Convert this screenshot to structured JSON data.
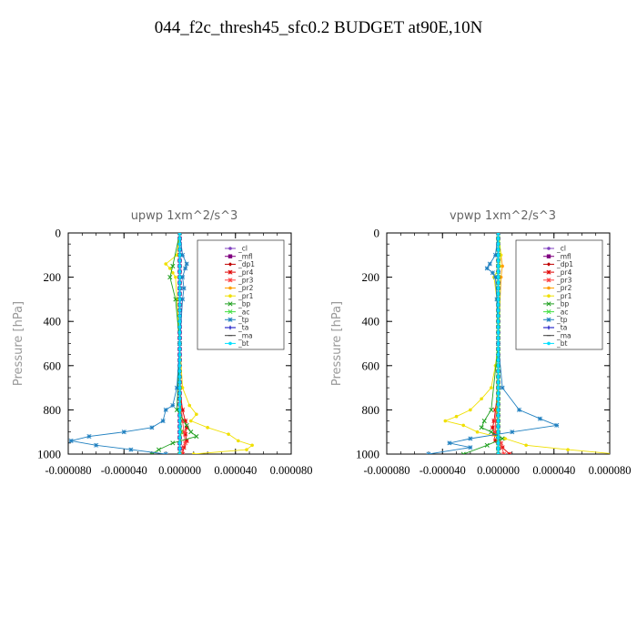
{
  "title": "044_f2c_thresh45_sfc0.2  BUDGET at90E,10N",
  "chart_data": [
    {
      "type": "line",
      "title": "upwp   1xm^2/s^3",
      "ylabel": "Pressure [hPa]",
      "xlim": [
        -8e-05,
        8e-05
      ],
      "ylim": [
        0,
        1000
      ],
      "y_inverted": true,
      "yticks": [
        "0",
        "200",
        "400",
        "600",
        "800",
        "1000"
      ],
      "xticks": [
        "-0.000080",
        "-0.000040",
        "0.000000",
        "0.000040",
        "0.000080"
      ],
      "legend": "top-right",
      "series": [
        {
          "name": "_cl",
          "color": "#8040c0",
          "y": [
            0,
            1000
          ],
          "x": [
            0,
            0
          ]
        },
        {
          "name": "_mfl",
          "color": "#800080",
          "y": [
            0,
            1000
          ],
          "x": [
            0,
            0
          ]
        },
        {
          "name": "_dp1",
          "color": "#c00000",
          "y": [
            0,
            1000
          ],
          "x": [
            0,
            0
          ]
        },
        {
          "name": "_pr4",
          "color": "#e00000",
          "y": [
            700,
            800,
            850,
            880,
            910,
            940,
            970,
            1000
          ],
          "x": [
            0,
            2e-06,
            4e-06,
            5e-06,
            4e-06,
            5e-06,
            3e-06,
            2e-06
          ]
        },
        {
          "name": "_pr3",
          "color": "#ff4040",
          "y": [
            700,
            850,
            900,
            950,
            1000
          ],
          "x": [
            0,
            2e-06,
            3e-06,
            4e-06,
            1e-06
          ]
        },
        {
          "name": "_pr2",
          "color": "#ffa000",
          "y": [
            0,
            500,
            800,
            900,
            1000
          ],
          "x": [
            0,
            0,
            0,
            1e-06,
            0
          ]
        },
        {
          "name": "_pr1",
          "color": "#f0e000",
          "y": [
            0,
            100,
            140,
            160,
            180,
            200,
            300,
            500,
            700,
            780,
            820,
            850,
            880,
            910,
            940,
            960,
            980,
            1000
          ],
          "x": [
            0,
            -2e-06,
            -1e-05,
            -7e-06,
            -5e-06,
            -3e-06,
            -2e-06,
            0,
            2e-06,
            7e-06,
            1.2e-05,
            8e-06,
            2e-05,
            3.5e-05,
            4.2e-05,
            5.2e-05,
            4.8e-05,
            1e-05
          ]
        },
        {
          "name": "_bp",
          "color": "#20a020",
          "y": [
            0,
            150,
            200,
            300,
            500,
            800,
            870,
            900,
            920,
            950,
            980,
            1000
          ],
          "x": [
            0,
            -5e-06,
            -7e-06,
            -3e-06,
            0,
            -2e-06,
            5e-06,
            8e-06,
            1.2e-05,
            -5e-06,
            -1.5e-05,
            -2e-05
          ]
        },
        {
          "name": "_ac",
          "color": "#40e040",
          "y": [
            0,
            500,
            900,
            1000
          ],
          "x": [
            0,
            0,
            1e-06,
            0
          ]
        },
        {
          "name": "_tp",
          "color": "#2080c0",
          "y": [
            0,
            100,
            140,
            160,
            200,
            250,
            300,
            500,
            700,
            780,
            800,
            850,
            880,
            900,
            920,
            940,
            960,
            980,
            1000
          ],
          "x": [
            0,
            2e-06,
            5e-06,
            4e-06,
            2e-06,
            3e-06,
            2e-06,
            0,
            -2e-06,
            -5e-06,
            -1e-05,
            -1.2e-05,
            -2e-05,
            -4e-05,
            -6.5e-05,
            -7.8e-05,
            -6e-05,
            -3.5e-05,
            -1e-05
          ]
        },
        {
          "name": "_ta",
          "color": "#0000c0",
          "y": [
            0,
            1000
          ],
          "x": [
            0,
            0
          ]
        },
        {
          "name": "_ma",
          "color": "#404040",
          "y": [
            0,
            1000
          ],
          "x": [
            0,
            0
          ]
        },
        {
          "name": "_bt",
          "color": "#00e0ff",
          "y": [
            0,
            1000
          ],
          "x": [
            0,
            0
          ]
        }
      ]
    },
    {
      "type": "line",
      "title": "vpwp   1xm^2/s^3",
      "ylabel": "Pressure [hPa]",
      "xlim": [
        -8e-05,
        8e-05
      ],
      "ylim": [
        0,
        1000
      ],
      "y_inverted": true,
      "yticks": [
        "0",
        "200",
        "400",
        "600",
        "800",
        "1000"
      ],
      "xticks": [
        "-0.000080",
        "-0.000040",
        "0.000000",
        "0.000040",
        "0.000080"
      ],
      "legend": "top-right",
      "series": [
        {
          "name": "_cl",
          "color": "#8040c0",
          "y": [
            0,
            1000
          ],
          "x": [
            0,
            0
          ]
        },
        {
          "name": "_mfl",
          "color": "#800080",
          "y": [
            0,
            1000
          ],
          "x": [
            0,
            0
          ]
        },
        {
          "name": "_dp1",
          "color": "#c00000",
          "y": [
            0,
            1000
          ],
          "x": [
            0,
            0
          ]
        },
        {
          "name": "_pr4",
          "color": "#e00000",
          "y": [
            700,
            800,
            850,
            880,
            910,
            940,
            970,
            1000
          ],
          "x": [
            0,
            -2e-06,
            -3e-06,
            -4e-06,
            -3e-06,
            -2e-06,
            3e-06,
            8e-06
          ]
        },
        {
          "name": "_pr3",
          "color": "#ff4040",
          "y": [
            700,
            850,
            900,
            950,
            1000
          ],
          "x": [
            0,
            -2e-06,
            -2e-06,
            2e-06,
            4e-06
          ]
        },
        {
          "name": "_pr2",
          "color": "#ffa000",
          "y": [
            0,
            150,
            200,
            500,
            800,
            900,
            1000
          ],
          "x": [
            0,
            3e-06,
            2e-06,
            0,
            -1e-06,
            0,
            0
          ]
        },
        {
          "name": "_pr1",
          "color": "#f0e000",
          "y": [
            0,
            100,
            150,
            200,
            300,
            500,
            600,
            700,
            750,
            800,
            830,
            850,
            870,
            900,
            930,
            960,
            980,
            1000
          ],
          "x": [
            0,
            2e-06,
            1e-06,
            -3e-06,
            -1e-06,
            0,
            -2e-06,
            -5e-06,
            -1.2e-05,
            -2e-05,
            -3e-05,
            -3.8e-05,
            -2.5e-05,
            -1.5e-05,
            5e-06,
            2e-05,
            5e-05,
            8.5e-05
          ]
        },
        {
          "name": "_bp",
          "color": "#20a020",
          "y": [
            0,
            500,
            800,
            850,
            880,
            900,
            930,
            960,
            1000
          ],
          "x": [
            0,
            0,
            -5e-06,
            -1e-05,
            -1.2e-05,
            -5e-06,
            3e-06,
            -8e-06,
            -2.5e-05
          ]
        },
        {
          "name": "_ac",
          "color": "#40e040",
          "y": [
            0,
            500,
            900,
            1000
          ],
          "x": [
            0,
            0,
            0,
            0
          ]
        },
        {
          "name": "_tp",
          "color": "#2080c0",
          "y": [
            0,
            100,
            140,
            160,
            180,
            200,
            300,
            500,
            700,
            800,
            840,
            870,
            900,
            930,
            950,
            970,
            1000
          ],
          "x": [
            0,
            -2e-06,
            -6e-06,
            -8e-06,
            -4e-06,
            -2e-06,
            -1e-06,
            0,
            3e-06,
            1.5e-05,
            3e-05,
            4.2e-05,
            1e-05,
            -2e-05,
            -3.5e-05,
            -2e-05,
            -5e-05
          ]
        },
        {
          "name": "_ta",
          "color": "#0000c0",
          "y": [
            0,
            1000
          ],
          "x": [
            0,
            0
          ]
        },
        {
          "name": "_ma",
          "color": "#404040",
          "y": [
            0,
            1000
          ],
          "x": [
            0,
            0
          ]
        },
        {
          "name": "_bt",
          "color": "#00e0ff",
          "y": [
            0,
            1000
          ],
          "x": [
            0,
            0
          ]
        }
      ]
    }
  ]
}
